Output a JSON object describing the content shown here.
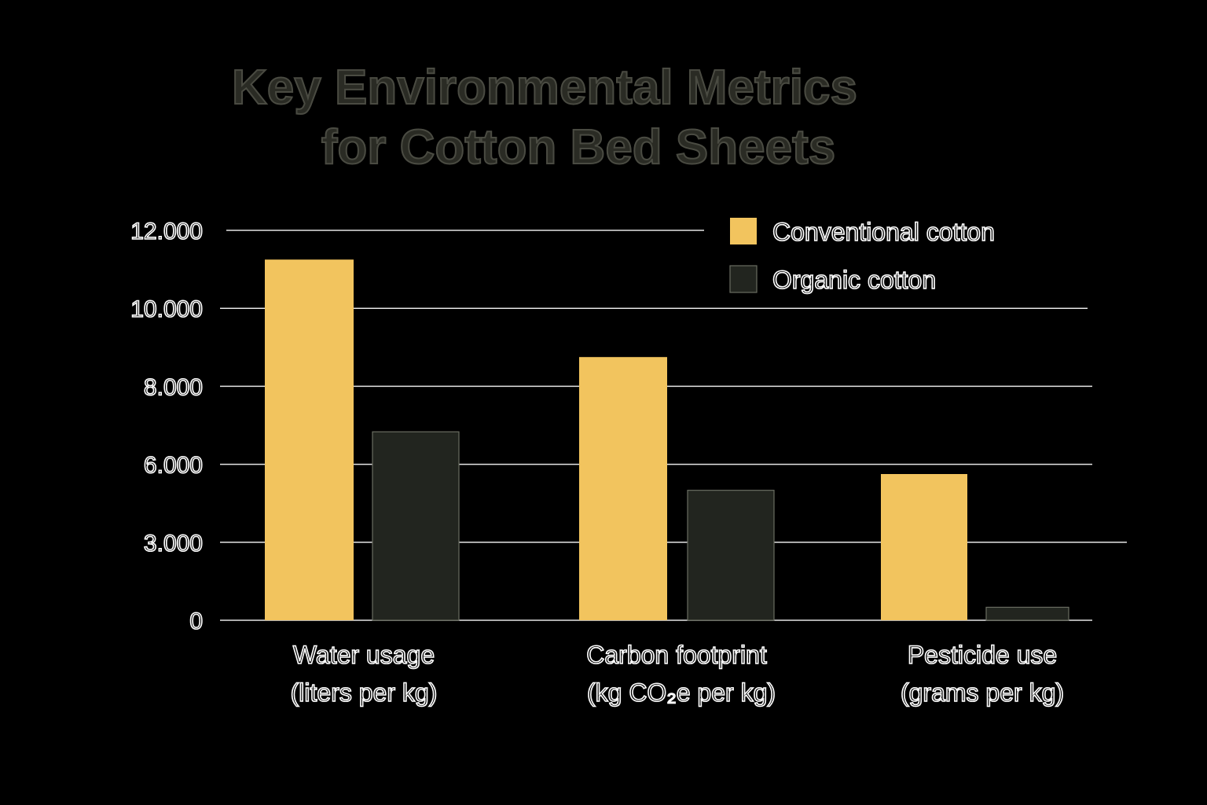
{
  "chart_data": {
    "type": "bar",
    "title_lines": [
      "Key Environmental Metrics",
      "for Cotton Bed Sheets"
    ],
    "categories": [
      [
        "Water usage",
        "(liters per kg)"
      ],
      [
        "Carbon footprint",
        "(kg CO₂e per kg)"
      ],
      [
        "Pesticide use",
        "(grams per kg)"
      ]
    ],
    "tick_labels": [
      "0",
      "3.000",
      "6.000",
      "8.000",
      "10.000",
      "12.000"
    ],
    "series": [
      {
        "name": "Conventional cotton",
        "color": "#f2c45e",
        "values": [
          11100,
          8100,
          4500
        ]
      },
      {
        "name": "Organic cotton",
        "color": "#22251f",
        "values": [
          5800,
          4000,
          400
        ]
      }
    ],
    "xlabel": "",
    "ylabel": "",
    "ylim": [
      0,
      12000
    ],
    "grid": true,
    "legend_position": "top-right"
  }
}
